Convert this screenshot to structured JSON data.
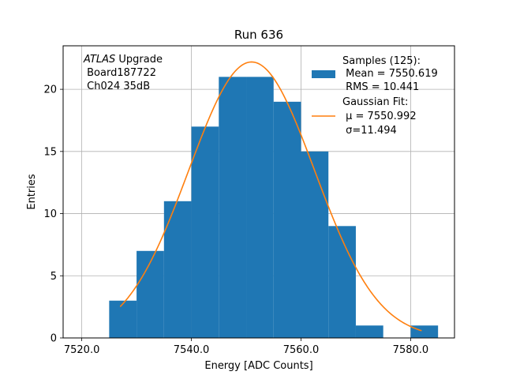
{
  "chart_data": {
    "type": "bar",
    "title": "Run 636",
    "xlabel": "Energy [ADC Counts]",
    "ylabel": "Entries",
    "xlim": [
      7516.6,
      7588.0
    ],
    "ylim": [
      0,
      23.5
    ],
    "grid": true,
    "x_ticks": [
      7520.0,
      7540.0,
      7560.0,
      7580.0
    ],
    "x_tick_labels": [
      "7520.0",
      "7540.0",
      "7560.0",
      "7580.0"
    ],
    "y_ticks": [
      0,
      5,
      10,
      15,
      20
    ],
    "y_tick_labels": [
      "0",
      "5",
      "10",
      "15",
      "20"
    ],
    "histogram": {
      "color": "#1f77b4",
      "bin_edges": [
        7525,
        7530,
        7535,
        7540,
        7545,
        7550,
        7555,
        7560,
        7565,
        7570,
        7575,
        7580,
        7585
      ],
      "counts": [
        3,
        7,
        11,
        17,
        21,
        21,
        19,
        15,
        9,
        1,
        0,
        1
      ]
    },
    "fit": {
      "color": "#ff7f0e",
      "amplitude": 22.2,
      "mu": 7550.992,
      "sigma": 11.494,
      "x_range": [
        7527,
        7582
      ]
    },
    "annotation": {
      "italic": "ATLAS",
      "line1_rest": " Upgrade",
      "line2": " Board187722",
      "line3": " Ch024 35dB"
    },
    "legend": {
      "position": "top-right",
      "samples_title": "Samples (125):",
      "samples_mean": " Mean = 7550.619",
      "samples_rms": " RMS = 10.441",
      "fit_title": "Gaussian Fit:",
      "fit_mu": " μ = 7550.992",
      "fit_sigma": " σ=11.494"
    }
  }
}
